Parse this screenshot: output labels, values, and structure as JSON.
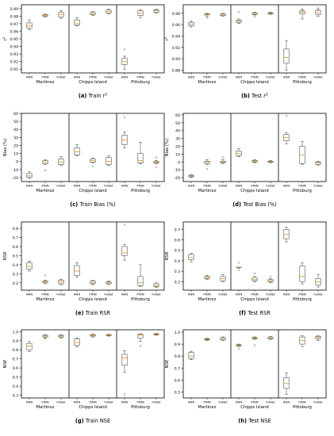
{
  "figure": {
    "colors": {
      "box": "#555555",
      "median": "#e08a1a",
      "flier": "#888888",
      "axis": "#000000",
      "divider": "#000000"
    },
    "captions": [
      {
        "letter": "(a)",
        "text": "Train",
        "math": "r",
        "sup": "2"
      },
      {
        "letter": "(b)",
        "text": "Test",
        "math": "r",
        "sup": "2"
      },
      {
        "letter": "(c)",
        "text": "Train Bias (%)"
      },
      {
        "letter": "(d)",
        "text": "Test Bias (%)"
      },
      {
        "letter": "(e)",
        "text": "Train RSR"
      },
      {
        "letter": "(f)",
        "text": "Test RSR"
      },
      {
        "letter": "(g)",
        "text": "Train NSE"
      },
      {
        "letter": "(h)",
        "text": "Test NSE"
      }
    ]
  },
  "chart_data": [
    {
      "type": "box",
      "panel": "a",
      "ylabel": "r2",
      "ylim": [
        0.905,
        0.995
      ],
      "yticks": [
        "0.91",
        "0.92",
        "0.93",
        "0.94",
        "0.95",
        "0.96",
        "0.97",
        "0.98",
        "0.99"
      ],
      "groups": [
        "Martinez",
        "Chipps Island",
        "Pittsburg"
      ],
      "categories": [
        "ANN",
        "PINN",
        "FoNet"
      ],
      "boxes": [
        {
          "min": 0.962,
          "q1": 0.964,
          "median": 0.967,
          "q3": 0.971,
          "max": 0.975,
          "fliers": []
        },
        {
          "min": 0.979,
          "q1": 0.98,
          "median": 0.981,
          "q3": 0.982,
          "max": 0.983,
          "fliers": []
        },
        {
          "min": 0.977,
          "q1": 0.979,
          "median": 0.982,
          "q3": 0.985,
          "max": 0.987,
          "fliers": []
        },
        {
          "min": 0.967,
          "q1": 0.968,
          "median": 0.97,
          "q3": 0.975,
          "max": 0.978,
          "fliers": []
        },
        {
          "min": 0.981,
          "q1": 0.982,
          "median": 0.983,
          "q3": 0.985,
          "max": 0.986,
          "fliers": []
        },
        {
          "min": 0.983,
          "q1": 0.984,
          "median": 0.986,
          "q3": 0.988,
          "max": 0.989,
          "fliers": []
        },
        {
          "min": 0.91,
          "q1": 0.916,
          "median": 0.92,
          "q3": 0.924,
          "max": 0.927,
          "fliers": [
            0.936
          ]
        },
        {
          "min": 0.978,
          "q1": 0.981,
          "median": 0.984,
          "q3": 0.987,
          "max": 0.988,
          "fliers": []
        },
        {
          "min": 0.984,
          "q1": 0.985,
          "median": 0.987,
          "q3": 0.988,
          "max": 0.989,
          "fliers": []
        }
      ]
    },
    {
      "type": "box",
      "panel": "b",
      "ylabel": "r2",
      "ylim": [
        0.875,
        0.995
      ],
      "yticks": [
        "0.88",
        "0.90",
        "0.92",
        "0.94",
        "0.96",
        "0.98"
      ],
      "groups": [
        "Martinez",
        "Chipps Island",
        "Pittsburg"
      ],
      "categories": [
        "ANN",
        "PINN",
        "FoNet"
      ],
      "boxes": [
        {
          "min": 0.956,
          "q1": 0.958,
          "median": 0.961,
          "q3": 0.964,
          "max": 0.966,
          "fliers": []
        },
        {
          "min": 0.974,
          "q1": 0.977,
          "median": 0.978,
          "q3": 0.979,
          "max": 0.98,
          "fliers": [
            0.972
          ]
        },
        {
          "min": 0.975,
          "q1": 0.976,
          "median": 0.977,
          "q3": 0.979,
          "max": 0.98,
          "fliers": []
        },
        {
          "min": 0.962,
          "q1": 0.964,
          "median": 0.966,
          "q3": 0.968,
          "max": 0.97,
          "fliers": [
            0.982
          ]
        },
        {
          "min": 0.977,
          "q1": 0.978,
          "median": 0.979,
          "q3": 0.981,
          "max": 0.982,
          "fliers": [
            0.974
          ]
        },
        {
          "min": 0.978,
          "q1": 0.979,
          "median": 0.98,
          "q3": 0.981,
          "max": 0.982,
          "fliers": []
        },
        {
          "min": 0.88,
          "q1": 0.892,
          "median": 0.902,
          "q3": 0.917,
          "max": 0.932,
          "fliers": []
        },
        {
          "min": 0.97,
          "q1": 0.979,
          "median": 0.982,
          "q3": 0.984,
          "max": 0.986,
          "fliers": [
            0.988
          ]
        },
        {
          "min": 0.975,
          "q1": 0.978,
          "median": 0.981,
          "q3": 0.985,
          "max": 0.987,
          "fliers": [
            0.989
          ]
        }
      ]
    },
    {
      "type": "box",
      "panel": "c",
      "ylabel": "Bias (%)",
      "ylim": [
        -25,
        60
      ],
      "yticks": [
        "-20",
        "-10",
        "0",
        "10",
        "20",
        "30",
        "40",
        "50",
        "60"
      ],
      "groups": [
        "Martinez",
        "Chipps Island",
        "Pittsburg"
      ],
      "categories": [
        "ANN",
        "PINN",
        "FoNet"
      ],
      "boxes": [
        {
          "min": -21,
          "q1": -20,
          "median": -18,
          "q3": -15,
          "max": -13,
          "fliers": []
        },
        {
          "min": -4,
          "q1": -3,
          "median": -1,
          "q3": 1,
          "max": 2,
          "fliers": [
            -11
          ]
        },
        {
          "min": -5,
          "q1": -4,
          "median": -1,
          "q3": 3,
          "max": 6,
          "fliers": []
        },
        {
          "min": 7,
          "q1": 8,
          "median": 12,
          "q3": 17,
          "max": 21,
          "fliers": []
        },
        {
          "min": -2,
          "q1": -1,
          "median": 1,
          "q3": 3,
          "max": 4,
          "fliers": [
            -6
          ]
        },
        {
          "min": -5,
          "q1": -4,
          "median": 0,
          "q3": 5,
          "max": 7,
          "fliers": []
        },
        {
          "min": 17,
          "q1": 21,
          "median": 27,
          "q3": 33,
          "max": 37,
          "fliers": [
            55
          ]
        },
        {
          "min": -3,
          "q1": -2,
          "median": 1,
          "q3": 10,
          "max": 24,
          "fliers": []
        },
        {
          "min": -3,
          "q1": -2,
          "median": -1,
          "q3": 0,
          "max": 1,
          "fliers": [
            5,
            -7
          ]
        }
      ]
    },
    {
      "type": "box",
      "panel": "d",
      "ylabel": "Bias (%)",
      "ylim": [
        -25,
        62
      ],
      "yticks": [
        "-20",
        "-10",
        "0",
        "10",
        "20",
        "30",
        "40",
        "50",
        "60"
      ],
      "groups": [
        "Martinez",
        "Chipps Island",
        "Pittsburg"
      ],
      "categories": [
        "ANN",
        "PINN",
        "FoNet"
      ],
      "boxes": [
        {
          "min": -20,
          "q1": -19,
          "median": -18,
          "q3": -17,
          "max": -16,
          "fliers": []
        },
        {
          "min": -3,
          "q1": -2,
          "median": 0,
          "q3": 1,
          "max": 3,
          "fliers": [
            -9
          ]
        },
        {
          "min": -2,
          "q1": -1,
          "median": 0,
          "q3": 1,
          "max": 3,
          "fliers": [
            6
          ]
        },
        {
          "min": 7,
          "q1": 8,
          "median": 11,
          "q3": 14,
          "max": 17,
          "fliers": []
        },
        {
          "min": -1,
          "q1": 0,
          "median": 1,
          "q3": 2,
          "max": 3,
          "fliers": []
        },
        {
          "min": -1,
          "q1": -0.5,
          "median": 0,
          "q3": 1,
          "max": 2,
          "fliers": []
        },
        {
          "min": 23,
          "q1": 27,
          "median": 31,
          "q3": 35,
          "max": 37,
          "fliers": [
            59
          ]
        },
        {
          "min": -3,
          "q1": -2,
          "median": 9,
          "q3": 20,
          "max": 26,
          "fliers": []
        },
        {
          "min": -4,
          "q1": -3,
          "median": -1,
          "q3": 0,
          "max": 1,
          "fliers": []
        }
      ]
    },
    {
      "type": "box",
      "panel": "e",
      "ylabel": "RSR",
      "ylim": [
        0.12,
        0.87
      ],
      "yticks": [
        "0.2",
        "0.3",
        "0.4",
        "0.5",
        "0.6",
        "0.7",
        "0.8"
      ],
      "groups": [
        "Martinez",
        "Chipps Island",
        "Pittsburg"
      ],
      "categories": [
        "ANN",
        "PINN",
        "FoNet"
      ],
      "boxes": [
        {
          "min": 0.33,
          "q1": 0.35,
          "median": 0.38,
          "q3": 0.42,
          "max": 0.44,
          "fliers": []
        },
        {
          "min": 0.19,
          "q1": 0.2,
          "median": 0.21,
          "q3": 0.22,
          "max": 0.23,
          "fliers": [
            0.28
          ]
        },
        {
          "min": 0.18,
          "q1": 0.19,
          "median": 0.21,
          "q3": 0.23,
          "max": 0.24,
          "fliers": []
        },
        {
          "min": 0.26,
          "q1": 0.28,
          "median": 0.33,
          "q3": 0.39,
          "max": 0.42,
          "fliers": []
        },
        {
          "min": 0.18,
          "q1": 0.19,
          "median": 0.2,
          "q3": 0.22,
          "max": 0.23,
          "fliers": []
        },
        {
          "min": 0.18,
          "q1": 0.19,
          "median": 0.2,
          "q3": 0.21,
          "max": 0.22,
          "fliers": []
        },
        {
          "min": 0.45,
          "q1": 0.5,
          "median": 0.53,
          "q3": 0.6,
          "max": 0.62,
          "fliers": [
            0.84
          ]
        },
        {
          "min": 0.16,
          "q1": 0.17,
          "median": 0.2,
          "q3": 0.27,
          "max": 0.4,
          "fliers": []
        },
        {
          "min": 0.15,
          "q1": 0.16,
          "median": 0.17,
          "q3": 0.19,
          "max": 0.2,
          "fliers": []
        }
      ]
    },
    {
      "type": "box",
      "panel": "f",
      "ylabel": "RSR",
      "ylim": [
        0.12,
        0.77
      ],
      "yticks": [
        "0.2",
        "0.3",
        "0.4",
        "0.5",
        "0.6",
        "0.7"
      ],
      "groups": [
        "Martinez",
        "Chipps Island",
        "Pittsburg"
      ],
      "categories": [
        "ANN",
        "PINN",
        "FoNet"
      ],
      "boxes": [
        {
          "min": 0.39,
          "q1": 0.41,
          "median": 0.43,
          "q3": 0.46,
          "max": 0.47,
          "fliers": []
        },
        {
          "min": 0.22,
          "q1": 0.23,
          "median": 0.24,
          "q3": 0.25,
          "max": 0.26,
          "fliers": []
        },
        {
          "min": 0.2,
          "q1": 0.21,
          "median": 0.23,
          "q3": 0.25,
          "max": 0.27,
          "fliers": []
        },
        {
          "min": 0.33,
          "q1": 0.34,
          "median": 0.34,
          "q3": 0.34,
          "max": 0.34,
          "fliers": [
            0.38,
            0.31
          ]
        },
        {
          "min": 0.2,
          "q1": 0.21,
          "median": 0.22,
          "q3": 0.24,
          "max": 0.25,
          "fliers": [
            0.28
          ]
        },
        {
          "min": 0.19,
          "q1": 0.2,
          "median": 0.21,
          "q3": 0.22,
          "max": 0.23,
          "fliers": [
            0.25
          ]
        },
        {
          "min": 0.58,
          "q1": 0.61,
          "median": 0.65,
          "q3": 0.7,
          "max": 0.72,
          "fliers": []
        },
        {
          "min": 0.18,
          "q1": 0.2,
          "median": 0.25,
          "q3": 0.35,
          "max": 0.38,
          "fliers": []
        },
        {
          "min": 0.15,
          "q1": 0.17,
          "median": 0.2,
          "q3": 0.23,
          "max": 0.27,
          "fliers": []
        }
      ]
    },
    {
      "type": "box",
      "panel": "g",
      "ylabel": "NSE",
      "ylim": [
        0.27,
        1.02
      ],
      "yticks": [
        "0.3",
        "0.4",
        "0.5",
        "0.6",
        "0.7",
        "0.8",
        "0.9",
        "1.0"
      ],
      "groups": [
        "Martinez",
        "Chipps Island",
        "Pittsburg"
      ],
      "categories": [
        "ANN",
        "PINN",
        "FoNet"
      ],
      "boxes": [
        {
          "min": 0.78,
          "q1": 0.8,
          "median": 0.84,
          "q3": 0.87,
          "max": 0.89,
          "fliers": []
        },
        {
          "min": 0.93,
          "q1": 0.94,
          "median": 0.95,
          "q3": 0.96,
          "max": 0.965,
          "fliers": [
            0.92
          ]
        },
        {
          "min": 0.93,
          "q1": 0.94,
          "median": 0.95,
          "q3": 0.96,
          "max": 0.965,
          "fliers": []
        },
        {
          "min": 0.83,
          "q1": 0.85,
          "median": 0.88,
          "q3": 0.92,
          "max": 0.93,
          "fliers": []
        },
        {
          "min": 0.94,
          "q1": 0.95,
          "median": 0.96,
          "q3": 0.965,
          "max": 0.97,
          "fliers": []
        },
        {
          "min": 0.95,
          "q1": 0.955,
          "median": 0.96,
          "q3": 0.965,
          "max": 0.97,
          "fliers": []
        },
        {
          "min": 0.55,
          "q1": 0.63,
          "median": 0.71,
          "q3": 0.75,
          "max": 0.79,
          "fliers": [
            0.31
          ]
        },
        {
          "min": 0.89,
          "q1": 0.93,
          "median": 0.96,
          "q3": 0.97,
          "max": 0.975,
          "fliers": [
            0.84
          ]
        },
        {
          "min": 0.96,
          "q1": 0.965,
          "median": 0.97,
          "q3": 0.975,
          "max": 0.98,
          "fliers": []
        }
      ]
    },
    {
      "type": "box",
      "panel": "h",
      "ylabel": "NSE",
      "ylim": [
        0.45,
        1.02
      ],
      "yticks": [
        "0.5",
        "0.6",
        "0.7",
        "0.8",
        "0.9",
        "1.0"
      ],
      "groups": [
        "Martinez",
        "Chipps Island",
        "Pittsburg"
      ],
      "categories": [
        "ANN",
        "PINN",
        "FoNet"
      ],
      "boxes": [
        {
          "min": 0.77,
          "q1": 0.78,
          "median": 0.8,
          "q3": 0.83,
          "max": 0.84,
          "fliers": []
        },
        {
          "min": 0.93,
          "q1": 0.935,
          "median": 0.94,
          "q3": 0.945,
          "max": 0.95,
          "fliers": []
        },
        {
          "min": 0.93,
          "q1": 0.935,
          "median": 0.945,
          "q3": 0.955,
          "max": 0.96,
          "fliers": []
        },
        {
          "min": 0.88,
          "q1": 0.885,
          "median": 0.89,
          "q3": 0.895,
          "max": 0.9,
          "fliers": [
            0.86
          ]
        },
        {
          "min": 0.94,
          "q1": 0.945,
          "median": 0.95,
          "q3": 0.955,
          "max": 0.96,
          "fliers": [
            0.89
          ]
        },
        {
          "min": 0.94,
          "q1": 0.945,
          "median": 0.95,
          "q3": 0.96,
          "max": 0.965,
          "fliers": []
        },
        {
          "min": 0.48,
          "q1": 0.53,
          "median": 0.57,
          "q3": 0.62,
          "max": 0.66,
          "fliers": []
        },
        {
          "min": 0.88,
          "q1": 0.9,
          "median": 0.93,
          "q3": 0.96,
          "max": 0.97,
          "fliers": []
        },
        {
          "min": 0.93,
          "q1": 0.945,
          "median": 0.955,
          "q3": 0.965,
          "max": 0.97,
          "fliers": []
        }
      ]
    }
  ]
}
